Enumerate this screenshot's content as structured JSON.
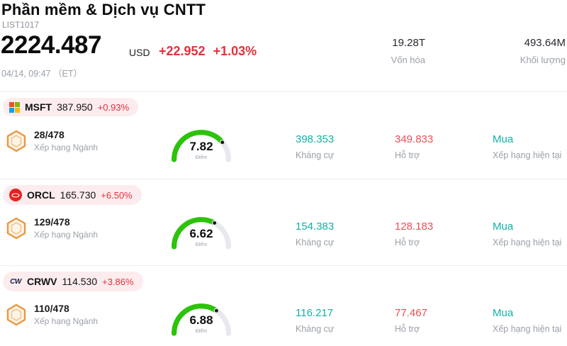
{
  "header": {
    "title": "Phần mềm & Dịch vụ CNTT",
    "subtitle": "LIST1017",
    "price": "2224.487",
    "currency": "USD",
    "change": "+22.952",
    "change_pct": "+1.03%",
    "datetime": "04/14, 09:47 （ET）",
    "market_cap": {
      "value": "19.28T",
      "label": "Vốn hóa"
    },
    "volume": {
      "value": "493.64M",
      "label": "Khối lượng"
    }
  },
  "labels": {
    "rank": "Xếp hạng Ngành",
    "score": "Điểm",
    "resistance": "Kháng cự",
    "support": "Hỗ trợ",
    "rating": "Xếp hạng hiện tại"
  },
  "colors": {
    "up_red": "#e5303a",
    "teal": "#12b1a5",
    "support_red": "#ea4f56",
    "gauge_green": "#2cc30b",
    "pill_bg": "#fcecee",
    "badge_orange": "#e8973f"
  },
  "rows": [
    {
      "ticker": "MSFT",
      "price": "387.950",
      "change_pct": "+0.93%",
      "icon": "microsoft-logo",
      "rank": "28/478",
      "score": "7.82",
      "resistance": "398.353",
      "support": "349.833",
      "rating": "Mua"
    },
    {
      "ticker": "ORCL",
      "price": "165.730",
      "change_pct": "+6.50%",
      "icon": "oracle-logo",
      "rank": "129/478",
      "score": "6.62",
      "resistance": "154.383",
      "support": "128.183",
      "rating": "Mua"
    },
    {
      "ticker": "CRWV",
      "price": "114.530",
      "change_pct": "+3.86%",
      "icon": "coreweave-logo",
      "icon_text": "CW",
      "rank": "110/478",
      "score": "6.88",
      "resistance": "116.217",
      "support": "77.467",
      "rating": "Mua"
    }
  ]
}
